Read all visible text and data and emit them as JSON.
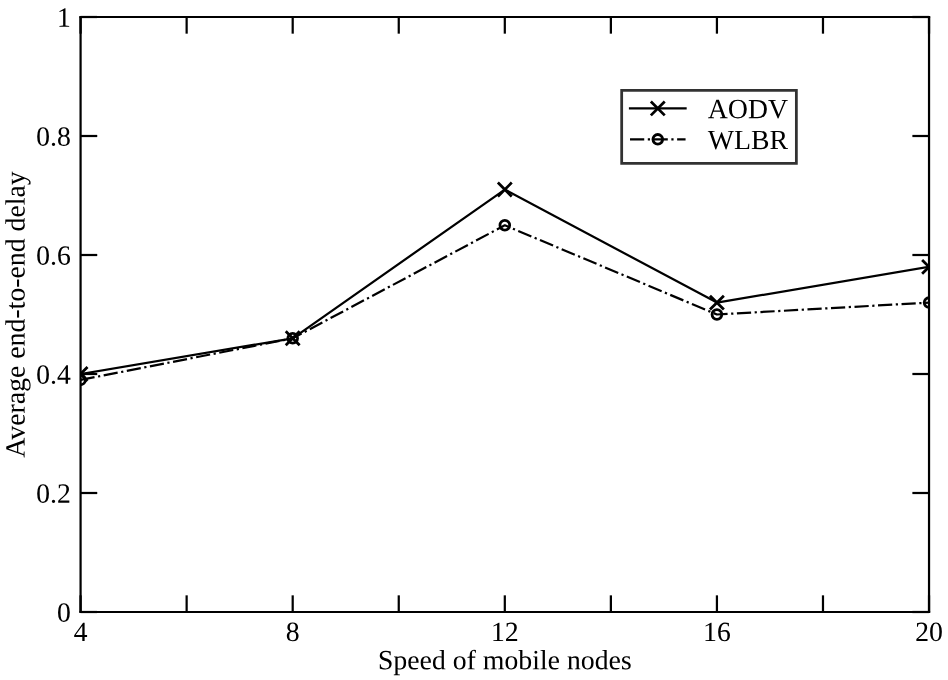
{
  "chart_data": {
    "type": "line",
    "xlabel": "Speed of mobile nodes",
    "ylabel": "Average end-to-end delay",
    "x": [
      4,
      8,
      12,
      16,
      20
    ],
    "series": [
      {
        "name": "AODV",
        "color": "#000000",
        "values": [
          0.4,
          0.46,
          0.71,
          0.52,
          0.58
        ],
        "marker": "cross",
        "line_style": "solid"
      },
      {
        "name": "WLBR",
        "color": "#000000",
        "values": [
          0.39,
          0.46,
          0.65,
          0.5,
          0.52
        ],
        "marker": "circle",
        "line_style": "dashdot"
      }
    ],
    "xlim": [
      4,
      20
    ],
    "xticks": [
      4,
      {
        "value": 6,
        "label": null
      },
      8,
      {
        "value": 10,
        "label": null
      },
      12,
      {
        "value": 14,
        "label": null
      },
      16,
      {
        "value": 18,
        "label": null
      },
      20
    ],
    "ylim": [
      0,
      1
    ],
    "yticks": [
      0,
      0.2,
      0.4,
      0.6,
      0.8,
      1
    ],
    "grid": false,
    "legend": "top right"
  }
}
